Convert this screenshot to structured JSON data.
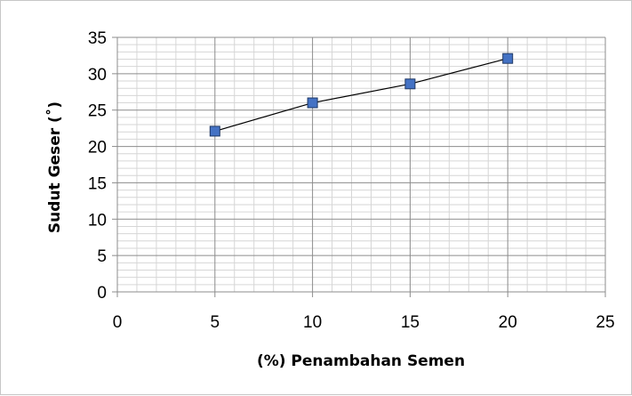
{
  "chart_data": {
    "type": "scatter",
    "xlabel": "(%) Penambahan Semen",
    "ylabel": "Sudut Geser (˚)",
    "xlim": [
      0,
      25
    ],
    "ylim": [
      0,
      35
    ],
    "x_ticks": [
      "0",
      "5",
      "10",
      "15",
      "20",
      "25"
    ],
    "y_ticks": [
      "0",
      "5",
      "10",
      "15",
      "20",
      "25",
      "30",
      "35"
    ],
    "grid": true,
    "legend": "none",
    "series": [
      {
        "x": [
          5,
          10,
          15,
          20
        ],
        "values": [
          22.1,
          26.0,
          28.6,
          32.1
        ],
        "marker": "square",
        "marker_color": "#4472c4",
        "line": "connected",
        "line_color": "#000000"
      }
    ]
  }
}
